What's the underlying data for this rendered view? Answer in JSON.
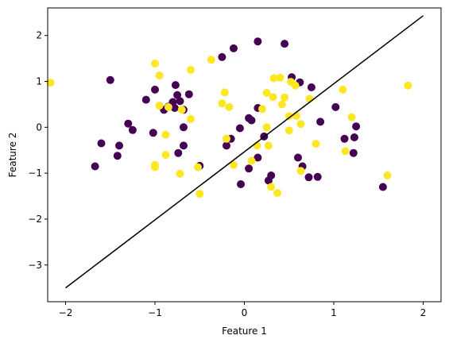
{
  "chart_data": {
    "type": "scatter",
    "title": "",
    "xlabel": "Feature 1",
    "ylabel": "Feature 2",
    "xlim": [
      -2.2,
      2.2
    ],
    "ylim": [
      -3.8,
      2.6
    ],
    "xticks": [
      -2,
      -1,
      0,
      1,
      2
    ],
    "yticks": [
      -3,
      -2,
      -1,
      0,
      1,
      2
    ],
    "grid": false,
    "colors": {
      "class_0": "#440154",
      "class_1": "#fde725",
      "line": "#000000"
    },
    "series": [
      {
        "class": 0,
        "color": "#440154",
        "points": [
          [
            -1.5,
            1.03
          ],
          [
            -1.1,
            0.6
          ],
          [
            -1.0,
            0.82
          ],
          [
            -0.77,
            0.92
          ],
          [
            -0.75,
            0.7
          ],
          [
            -0.8,
            0.55
          ],
          [
            -0.72,
            0.57
          ],
          [
            -0.62,
            0.72
          ],
          [
            -0.9,
            0.38
          ],
          [
            -0.85,
            0.45
          ],
          [
            -0.78,
            0.42
          ],
          [
            -0.68,
            0.38
          ],
          [
            -1.6,
            -0.35
          ],
          [
            -1.3,
            0.08
          ],
          [
            -1.25,
            -0.06
          ],
          [
            -1.4,
            -0.4
          ],
          [
            -1.42,
            -0.62
          ],
          [
            -1.02,
            -0.12
          ],
          [
            -0.68,
            0.0
          ],
          [
            -0.68,
            -0.4
          ],
          [
            -0.74,
            -0.56
          ],
          [
            -1.67,
            -0.85
          ],
          [
            -0.5,
            -0.84
          ],
          [
            -0.25,
            1.53
          ],
          [
            -0.12,
            1.72
          ],
          [
            0.15,
            1.87
          ],
          [
            0.45,
            1.82
          ],
          [
            0.53,
            1.09
          ],
          [
            0.62,
            0.98
          ],
          [
            0.75,
            0.87
          ],
          [
            -0.2,
            -0.4
          ],
          [
            -0.15,
            -0.25
          ],
          [
            0.05,
            0.2
          ],
          [
            0.08,
            0.15
          ],
          [
            -0.05,
            -0.02
          ],
          [
            0.15,
            0.42
          ],
          [
            0.22,
            -0.2
          ],
          [
            0.15,
            -0.66
          ],
          [
            0.05,
            -0.9
          ],
          [
            0.3,
            -1.05
          ],
          [
            0.27,
            -1.16
          ],
          [
            -0.04,
            -1.24
          ],
          [
            0.6,
            -0.66
          ],
          [
            0.65,
            -0.85
          ],
          [
            0.72,
            -1.09
          ],
          [
            0.82,
            -1.08
          ],
          [
            0.85,
            0.12
          ],
          [
            1.02,
            0.44
          ],
          [
            1.12,
            -0.25
          ],
          [
            1.23,
            -0.22
          ],
          [
            1.25,
            0.02
          ],
          [
            1.22,
            -0.56
          ],
          [
            1.55,
            -1.3
          ]
        ]
      },
      {
        "class": 1,
        "color": "#fde725",
        "points": [
          [
            -2.17,
            0.97
          ],
          [
            -1.0,
            1.39
          ],
          [
            -0.95,
            1.13
          ],
          [
            -0.6,
            1.25
          ],
          [
            -0.95,
            0.47
          ],
          [
            -0.85,
            0.44
          ],
          [
            -0.7,
            0.38
          ],
          [
            -0.6,
            0.18
          ],
          [
            -0.88,
            -0.16
          ],
          [
            -0.88,
            -0.6
          ],
          [
            -1.0,
            -0.82
          ],
          [
            -1.0,
            -0.87
          ],
          [
            -0.72,
            -1.01
          ],
          [
            -0.52,
            -0.87
          ],
          [
            -0.5,
            -1.45
          ],
          [
            -0.37,
            1.47
          ],
          [
            -0.22,
            0.76
          ],
          [
            -0.25,
            0.52
          ],
          [
            -0.17,
            0.44
          ],
          [
            -0.2,
            -0.25
          ],
          [
            -0.12,
            -0.82
          ],
          [
            0.08,
            -0.73
          ],
          [
            0.14,
            -0.4
          ],
          [
            0.2,
            0.4
          ],
          [
            0.25,
            0.75
          ],
          [
            0.33,
            1.07
          ],
          [
            0.4,
            1.08
          ],
          [
            0.32,
            0.66
          ],
          [
            0.42,
            0.5
          ],
          [
            0.45,
            0.65
          ],
          [
            0.52,
            0.99
          ],
          [
            0.57,
            0.91
          ],
          [
            0.5,
            0.24
          ],
          [
            0.58,
            0.25
          ],
          [
            0.5,
            -0.07
          ],
          [
            0.63,
            0.07
          ],
          [
            0.25,
            0.0
          ],
          [
            0.27,
            -0.4
          ],
          [
            0.3,
            -1.3
          ],
          [
            0.37,
            -1.43
          ],
          [
            0.63,
            -0.95
          ],
          [
            0.73,
            0.62
          ],
          [
            0.8,
            -0.36
          ],
          [
            1.1,
            0.82
          ],
          [
            1.2,
            0.22
          ],
          [
            1.13,
            -0.52
          ],
          [
            1.6,
            -1.05
          ],
          [
            1.83,
            0.91
          ]
        ]
      }
    ],
    "line": {
      "x": [
        -2,
        2
      ],
      "y": [
        -3.5,
        2.43
      ]
    }
  }
}
